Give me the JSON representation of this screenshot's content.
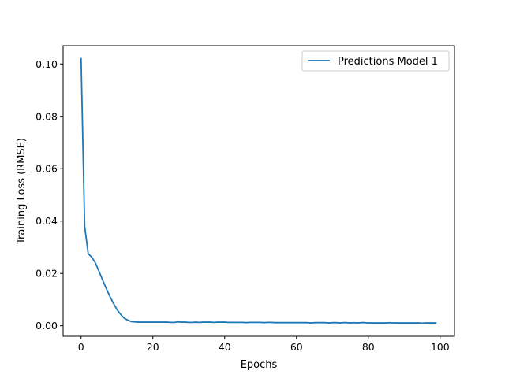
{
  "chart_data": {
    "type": "line",
    "title": "",
    "xlabel": "Epochs",
    "ylabel": "Training Loss (RMSE)",
    "xlim": [
      -5,
      104
    ],
    "ylim": [
      -0.004,
      0.107
    ],
    "xticks": [
      0,
      20,
      40,
      60,
      80,
      100
    ],
    "xtick_labels": [
      "0",
      "20",
      "40",
      "60",
      "80",
      "100"
    ],
    "yticks": [
      0.0,
      0.02,
      0.04,
      0.06,
      0.08,
      0.1
    ],
    "ytick_labels": [
      "0.00",
      "0.02",
      "0.04",
      "0.06",
      "0.08",
      "0.10"
    ],
    "grid": false,
    "legend": "top-right",
    "series": [
      {
        "name": "Predictions Model 1",
        "color": "#1f77b4",
        "x": [
          0,
          1,
          2,
          3,
          4,
          5,
          6,
          7,
          8,
          9,
          10,
          11,
          12,
          13,
          14,
          15,
          16,
          17,
          18,
          19,
          20,
          21,
          22,
          23,
          24,
          25,
          26,
          27,
          28,
          29,
          30,
          31,
          32,
          33,
          34,
          35,
          36,
          37,
          38,
          39,
          40,
          41,
          42,
          43,
          44,
          45,
          46,
          47,
          48,
          49,
          50,
          51,
          52,
          53,
          54,
          55,
          56,
          57,
          58,
          59,
          60,
          61,
          62,
          63,
          64,
          65,
          66,
          67,
          68,
          69,
          70,
          71,
          72,
          73,
          74,
          75,
          76,
          77,
          78,
          79,
          80,
          81,
          82,
          83,
          84,
          85,
          86,
          87,
          88,
          89,
          90,
          91,
          92,
          93,
          94,
          95,
          96,
          97,
          98,
          99
        ],
        "y": [
          0.1023,
          0.038,
          0.0275,
          0.0262,
          0.024,
          0.0208,
          0.0175,
          0.0143,
          0.0113,
          0.0086,
          0.0062,
          0.0044,
          0.0029,
          0.0022,
          0.0016,
          0.0015,
          0.0014,
          0.0014,
          0.0014,
          0.0014,
          0.0014,
          0.0014,
          0.0014,
          0.0014,
          0.0014,
          0.0013,
          0.0013,
          0.0015,
          0.0014,
          0.0014,
          0.0013,
          0.0013,
          0.0014,
          0.0013,
          0.0014,
          0.0014,
          0.0014,
          0.0013,
          0.0014,
          0.0014,
          0.0014,
          0.0013,
          0.0013,
          0.0013,
          0.0013,
          0.0013,
          0.0012,
          0.0013,
          0.0013,
          0.0013,
          0.0013,
          0.0012,
          0.0013,
          0.0013,
          0.0012,
          0.0012,
          0.0012,
          0.0012,
          0.0012,
          0.0012,
          0.0012,
          0.0012,
          0.0012,
          0.0012,
          0.0011,
          0.0012,
          0.0012,
          0.0012,
          0.0012,
          0.0011,
          0.0012,
          0.0012,
          0.0011,
          0.0012,
          0.0012,
          0.0011,
          0.0012,
          0.0011,
          0.0012,
          0.0012,
          0.0011,
          0.0011,
          0.0011,
          0.0011,
          0.0011,
          0.0011,
          0.0012,
          0.0011,
          0.0011,
          0.0011,
          0.0011,
          0.0011,
          0.0011,
          0.0011,
          0.0011,
          0.001,
          0.0011,
          0.0011,
          0.0011,
          0.0011
        ]
      }
    ]
  }
}
